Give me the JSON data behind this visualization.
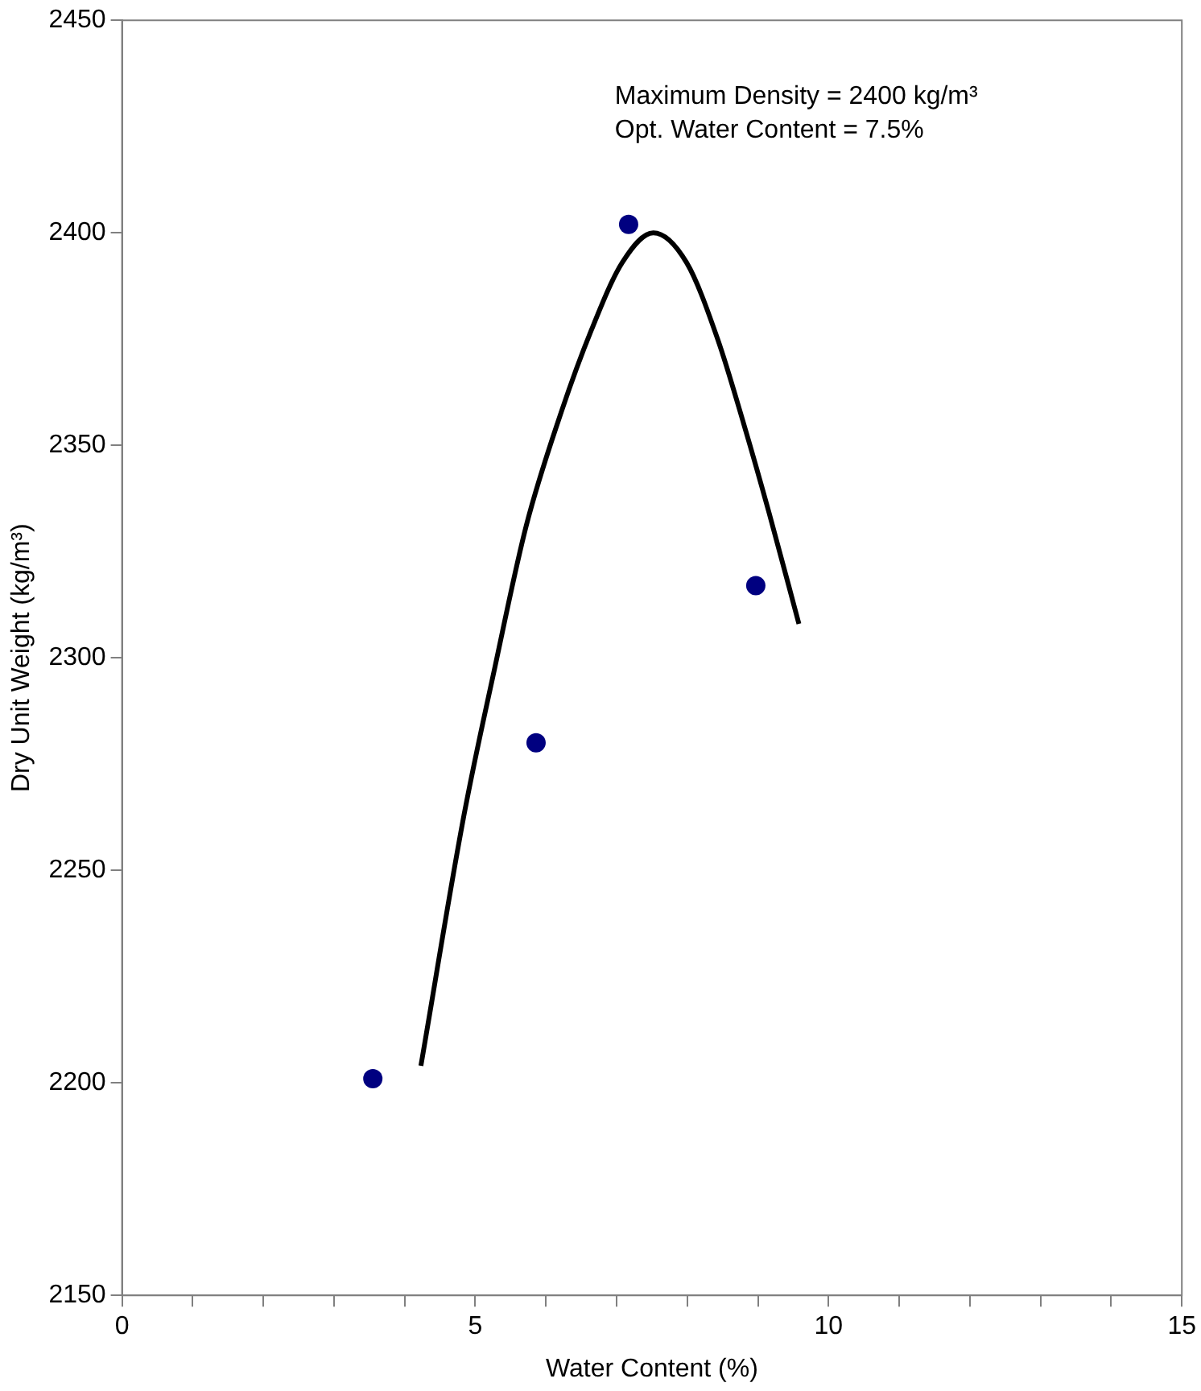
{
  "chart_data": {
    "type": "scatter",
    "xlabel": "Water Content (%)",
    "ylabel": "Dry Unit Weight (kg/m³)",
    "annotations": [
      "Maximum Density = 2400 kg/m³",
      "Opt. Water Content = 7.5%"
    ],
    "xlim": [
      0,
      15
    ],
    "ylim": [
      2150,
      2450
    ],
    "xticks": [
      0,
      {
        "value": 1,
        "label": null
      },
      {
        "value": 2,
        "label": null
      },
      {
        "value": 3,
        "label": null
      },
      {
        "value": 4,
        "label": null
      },
      5,
      {
        "value": 6,
        "label": null
      },
      {
        "value": 7,
        "label": null
      },
      {
        "value": 8,
        "label": null
      },
      {
        "value": 9,
        "label": null
      },
      10,
      {
        "value": 11,
        "label": null
      },
      {
        "value": 12,
        "label": null
      },
      {
        "value": 13,
        "label": null
      },
      {
        "value": 14,
        "label": null
      },
      15
    ],
    "yticks": [
      2150,
      2200,
      2250,
      2300,
      2350,
      2400,
      2450
    ],
    "grid": false,
    "legend": false,
    "series": [
      {
        "color": "#000080",
        "marker": "circle",
        "x": [
          3.55,
          5.86,
          7.17,
          8.97
        ],
        "values": [
          2201,
          2280,
          2402,
          2317
        ]
      },
      {
        "type": "line",
        "color": "#000000",
        "marker": "none",
        "x": [
          4.23,
          4.84,
          5.28,
          5.72,
          6.2,
          6.64,
          7.08,
          7.52,
          7.99,
          8.43,
          8.8,
          9.16,
          9.58
        ],
        "values": [
          2204,
          2263,
          2298,
          2331,
          2357,
          2377,
          2393,
          2400,
          2393,
          2375,
          2355,
          2334,
          2308
        ]
      }
    ]
  }
}
